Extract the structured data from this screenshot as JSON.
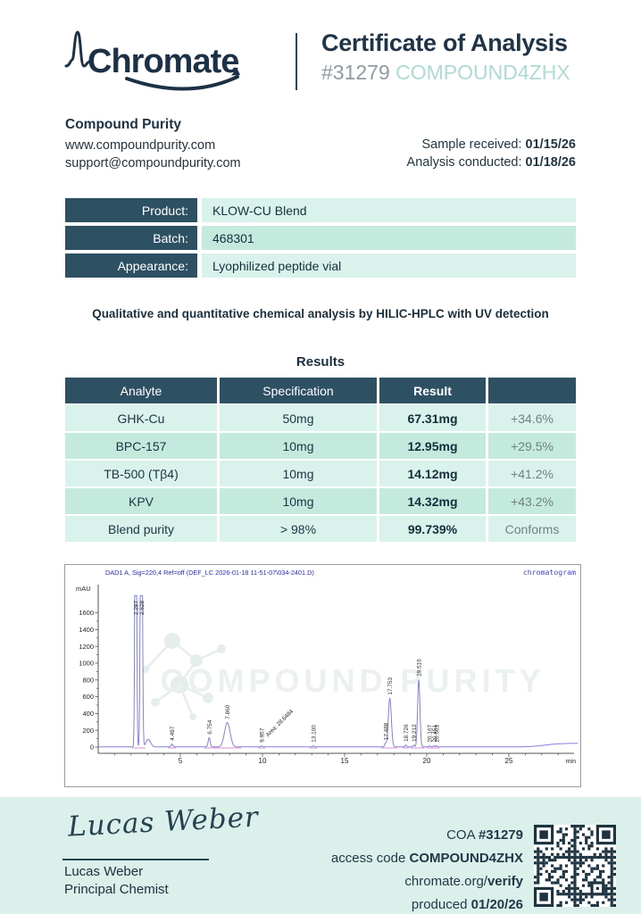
{
  "header": {
    "brand": "Chromate",
    "title": "Certificate of Analysis",
    "coa_number": "#31279",
    "access_code": "COMPOUND4ZHX"
  },
  "company": {
    "name": "Compound Purity",
    "website": "www.compoundpurity.com",
    "email": "support@compoundpurity.com",
    "sample_received_label": "Sample received:",
    "sample_received": "01/15/26",
    "analysis_conducted_label": "Analysis conducted:",
    "analysis_conducted": "01/18/26"
  },
  "product_info": {
    "rows": [
      {
        "label": "Product:",
        "value": "KLOW-CU Blend"
      },
      {
        "label": "Batch:",
        "value": "468301"
      },
      {
        "label": "Appearance:",
        "value": "Lyophilized peptide vial"
      }
    ]
  },
  "method_statement": "Qualitative and quantitative chemical analysis by HILIC-HPLC with UV detection",
  "results": {
    "heading": "Results",
    "columns": [
      "Analyte",
      "Specification",
      "Result",
      ""
    ],
    "rows": [
      {
        "analyte": "GHK-Cu",
        "spec": "50mg",
        "result": "67.31mg",
        "delta": "+34.6%"
      },
      {
        "analyte": "BPC-157",
        "spec": "10mg",
        "result": "12.95mg",
        "delta": "+29.5%"
      },
      {
        "analyte": "TB-500 (Tβ4)",
        "spec": "10mg",
        "result": "14.12mg",
        "delta": "+41.2%"
      },
      {
        "analyte": "KPV",
        "spec": "10mg",
        "result": "14.32mg",
        "delta": "+43.2%"
      },
      {
        "analyte": "Blend purity",
        "spec": "> 98%",
        "result": "99.739%",
        "delta": "Conforms"
      }
    ]
  },
  "chart_data": {
    "type": "line",
    "title": "DAD1 A, Sig=220,4 Ref=off (DEF_LC 2026-01-18 11-51-07\\034-2401.D)",
    "corner_label": "chromatogram",
    "watermark": "COMPOUND PURITY",
    "ylabel": "mAU",
    "xlabel": "min",
    "xlim": [
      0,
      29
    ],
    "ylim": [
      0,
      1800
    ],
    "xticks": [
      5,
      10,
      15,
      20,
      25
    ],
    "yticks": [
      0,
      200,
      400,
      600,
      800,
      1000,
      1200,
      1400,
      1600
    ],
    "grid": false,
    "peaks": [
      {
        "rt": 2.287,
        "label": "2.287",
        "height_mau": 5500,
        "sigma": 0.045,
        "offscale": true
      },
      {
        "rt": 2.628,
        "label": "2.628",
        "height_mau": 6000,
        "sigma": 0.05,
        "offscale": true
      },
      {
        "rt": 3.05,
        "label": null,
        "height_mau": 90,
        "sigma": 0.14
      },
      {
        "rt": 4.497,
        "label": "4.497",
        "height_mau": 35,
        "sigma": 0.05
      },
      {
        "rt": 6.754,
        "label": "6.754",
        "height_mau": 110,
        "sigma": 0.06
      },
      {
        "rt": 7.86,
        "label": "7.860",
        "height_mau": 290,
        "sigma": 0.17
      },
      {
        "rt": 9.957,
        "label": "9.957",
        "height_mau": 14,
        "sigma": 0.045,
        "annotation": "Area: 28.6484"
      },
      {
        "rt": 13.1,
        "label": "13.100",
        "height_mau": 14,
        "sigma": 0.045
      },
      {
        "rt": 17.488,
        "label": "17.488",
        "height_mau": 40,
        "sigma": 0.05
      },
      {
        "rt": 17.753,
        "label": "17.753",
        "height_mau": 580,
        "sigma": 0.09
      },
      {
        "rt": 18.726,
        "label": "18.726",
        "height_mau": 22,
        "sigma": 0.04
      },
      {
        "rt": 19.212,
        "label": "19.212",
        "height_mau": 22,
        "sigma": 0.04
      },
      {
        "rt": 19.516,
        "label": "19.516",
        "height_mau": 800,
        "sigma": 0.07
      },
      {
        "rt": 20.167,
        "label": "20.167",
        "height_mau": 16,
        "sigma": 0.035
      },
      {
        "rt": 20.451,
        "label": "20.451",
        "height_mau": 16,
        "sigma": 0.035
      },
      {
        "rt": 20.603,
        "label": "20.603",
        "height_mau": 16,
        "sigma": 0.035
      }
    ]
  },
  "footer": {
    "signature": "Lucas Weber",
    "signer_name": "Lucas Weber",
    "signer_role": "Principal Chemist",
    "coa_label": "COA",
    "coa_number": "#31279",
    "access_label": "access code",
    "access_code": "COMPOUND4ZHX",
    "verify_url_base": "chromate.org/",
    "verify_url_bold": "verify",
    "produced_label": "produced",
    "produced_date": "01/20/26"
  },
  "colors": {
    "navy": "#2e5063",
    "mint_row_light": "#d9f3ec",
    "mint_row_dark": "#c4eade",
    "header_access_code": "#aedbd2",
    "footer_band": "#dbf0ea",
    "trace_blue": "#8282d8",
    "trace_pink": "#d98fd2"
  }
}
